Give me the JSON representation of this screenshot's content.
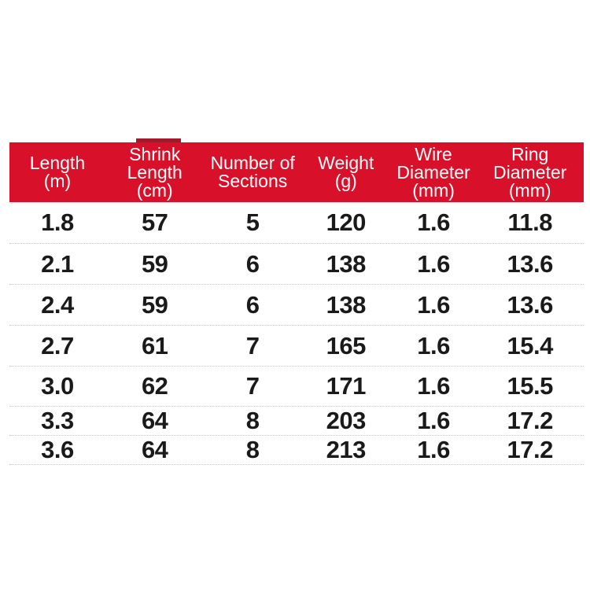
{
  "colors": {
    "header_bg": "#D8102A",
    "header_notch": "#A21A29",
    "text": "#1A1A1A",
    "divider": "#C8C8C8",
    "header_text": "#FFFFFF",
    "page_bg": "#FFFFFF"
  },
  "table": {
    "headers": [
      {
        "lines": [
          "Length",
          "(m)"
        ]
      },
      {
        "lines": [
          "Shrink",
          "Length",
          "(cm)"
        ]
      },
      {
        "lines": [
          "Number of",
          "Sections"
        ]
      },
      {
        "lines": [
          "Weight",
          "(g)"
        ]
      },
      {
        "lines": [
          "Wire",
          "Diameter",
          "(mm)"
        ]
      },
      {
        "lines": [
          "Ring",
          "Diameter",
          "(mm)"
        ]
      }
    ],
    "rows": [
      [
        "1.8",
        "57",
        "5",
        "120",
        "1.6",
        "11.8"
      ],
      [
        "2.1",
        "59",
        "6",
        "138",
        "1.6",
        "13.6"
      ],
      [
        "2.4",
        "59",
        "6",
        "138",
        "1.6",
        "13.6"
      ],
      [
        "2.7",
        "61",
        "7",
        "165",
        "1.6",
        "15.4"
      ],
      [
        "3.0",
        "62",
        "7",
        "171",
        "1.6",
        "15.5"
      ],
      [
        "3.3",
        "64",
        "8",
        "203",
        "1.6",
        "17.2"
      ],
      [
        "3.6",
        "64",
        "8",
        "213",
        "1.6",
        "17.2"
      ]
    ]
  },
  "chart_data": {
    "type": "table",
    "title": "",
    "columns": [
      "Length (m)",
      "Shrink Length (cm)",
      "Number of Sections",
      "Weight (g)",
      "Wire Diameter (mm)",
      "Ring Diameter (mm)"
    ],
    "rows": [
      [
        1.8,
        57,
        5,
        120,
        1.6,
        11.8
      ],
      [
        2.1,
        59,
        6,
        138,
        1.6,
        13.6
      ],
      [
        2.4,
        59,
        6,
        138,
        1.6,
        13.6
      ],
      [
        2.7,
        61,
        7,
        165,
        1.6,
        15.4
      ],
      [
        3.0,
        62,
        7,
        171,
        1.6,
        15.5
      ],
      [
        3.3,
        64,
        8,
        203,
        1.6,
        17.2
      ],
      [
        3.6,
        64,
        8,
        213,
        1.6,
        17.2
      ]
    ],
    "layout_hints": {
      "header_style": "red-band",
      "row_dividers": "dotted",
      "grid": "horizontal-only"
    }
  }
}
